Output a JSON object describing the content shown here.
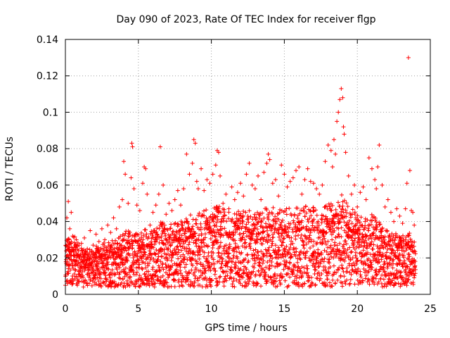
{
  "chart_data": {
    "type": "scatter",
    "title": "Day 090 of 2023, Rate Of TEC Index for receiver flgp",
    "xlabel": "GPS time / hours",
    "ylabel": "ROTI / TECUs",
    "xlim": [
      0,
      25
    ],
    "ylim": [
      0,
      0.14
    ],
    "xticks": [
      0,
      5,
      10,
      15,
      20,
      25
    ],
    "yticks": [
      0,
      0.02,
      0.04,
      0.06,
      0.08,
      0.1,
      0.12,
      0.14
    ],
    "xtick_labels": [
      "0",
      "5",
      "10",
      "15",
      "20",
      "25"
    ],
    "ytick_labels": [
      "0",
      "0.02",
      "0.04",
      "0.06",
      "0.08",
      "0.1",
      "0.12",
      "0.14"
    ],
    "grid": true,
    "marker": "+",
    "color": "#ff0000",
    "series": [
      {
        "name": "ROTI",
        "x": [
          0.1,
          0.2,
          0.25,
          0.3,
          0.35,
          0.4,
          0.5,
          0.6,
          0.75,
          0.9,
          1.1,
          1.3,
          1.5,
          1.7,
          1.9,
          2.1,
          2.3,
          2.5,
          2.7,
          2.9,
          3.1,
          3.3,
          3.5,
          3.7,
          3.9,
          4.0,
          4.1,
          4.3,
          4.5,
          4.55,
          4.6,
          4.7,
          4.9,
          5.1,
          5.3,
          5.4,
          5.5,
          5.6,
          5.8,
          6.0,
          6.2,
          6.4,
          6.5,
          6.7,
          6.9,
          7.1,
          7.3,
          7.5,
          7.7,
          7.9,
          8.1,
          8.3,
          8.5,
          8.7,
          8.8,
          8.9,
          9.0,
          9.1,
          9.3,
          9.5,
          9.7,
          9.9,
          10.1,
          10.3,
          10.4,
          10.5,
          10.6,
          10.8,
          11.0,
          11.2,
          11.4,
          11.6,
          11.8,
          12.0,
          12.2,
          12.4,
          12.6,
          12.8,
          13.0,
          13.2,
          13.4,
          13.6,
          13.8,
          13.9,
          14.0,
          14.2,
          14.4,
          14.6,
          14.8,
          15.0,
          15.2,
          15.4,
          15.6,
          15.8,
          16.0,
          16.2,
          16.4,
          16.6,
          16.8,
          17.0,
          17.2,
          17.4,
          17.6,
          17.8,
          18.0,
          18.2,
          18.3,
          18.4,
          18.5,
          18.6,
          18.7,
          18.8,
          18.9,
          19.0,
          19.05,
          19.1,
          19.2,
          19.4,
          19.6,
          19.8,
          20.0,
          20.2,
          20.4,
          20.6,
          20.8,
          21.0,
          21.2,
          21.3,
          21.4,
          21.5,
          21.7,
          21.9,
          22.1,
          22.3,
          22.5,
          22.7,
          22.9,
          23.1,
          23.3,
          23.4,
          23.5,
          23.6,
          23.7,
          23.8,
          23.9
        ],
        "y": [
          0.042,
          0.051,
          0.03,
          0.036,
          0.028,
          0.045,
          0.032,
          0.026,
          0.03,
          0.024,
          0.028,
          0.031,
          0.025,
          0.035,
          0.027,
          0.033,
          0.029,
          0.036,
          0.03,
          0.038,
          0.034,
          0.042,
          0.036,
          0.048,
          0.052,
          0.073,
          0.066,
          0.05,
          0.064,
          0.083,
          0.081,
          0.058,
          0.049,
          0.046,
          0.061,
          0.07,
          0.069,
          0.055,
          0.038,
          0.045,
          0.049,
          0.055,
          0.081,
          0.06,
          0.044,
          0.05,
          0.046,
          0.052,
          0.057,
          0.049,
          0.058,
          0.077,
          0.066,
          0.072,
          0.085,
          0.083,
          0.062,
          0.058,
          0.069,
          0.057,
          0.063,
          0.061,
          0.066,
          0.071,
          0.079,
          0.078,
          0.065,
          0.05,
          0.055,
          0.047,
          0.059,
          0.052,
          0.056,
          0.061,
          0.054,
          0.066,
          0.072,
          0.06,
          0.058,
          0.065,
          0.052,
          0.067,
          0.072,
          0.077,
          0.074,
          0.061,
          0.063,
          0.054,
          0.071,
          0.066,
          0.059,
          0.062,
          0.064,
          0.068,
          0.07,
          0.055,
          0.063,
          0.069,
          0.062,
          0.061,
          0.058,
          0.055,
          0.06,
          0.073,
          0.082,
          0.079,
          0.07,
          0.085,
          0.077,
          0.095,
          0.1,
          0.107,
          0.113,
          0.108,
          0.092,
          0.088,
          0.078,
          0.065,
          0.055,
          0.06,
          0.048,
          0.056,
          0.059,
          0.052,
          0.075,
          0.069,
          0.063,
          0.058,
          0.07,
          0.082,
          0.06,
          0.048,
          0.052,
          0.045,
          0.04,
          0.047,
          0.043,
          0.039,
          0.047,
          0.061,
          0.13,
          0.068,
          0.046,
          0.045,
          0.038
        ]
      }
    ],
    "band": {
      "description": "dense lower cloud",
      "x": [
        0.0,
        0.5,
        1.0,
        1.5,
        2.0,
        2.5,
        3.0,
        3.5,
        4.0,
        4.5,
        5.0,
        5.5,
        6.0,
        6.5,
        7.0,
        7.5,
        8.0,
        8.5,
        9.0,
        9.5,
        10.0,
        10.5,
        11.0,
        11.5,
        12.0,
        12.5,
        13.0,
        13.5,
        14.0,
        14.5,
        15.0,
        15.5,
        16.0,
        16.5,
        17.0,
        17.5,
        18.0,
        18.5,
        19.0,
        19.5,
        20.0,
        20.5,
        21.0,
        21.5,
        22.0,
        22.5,
        23.0,
        23.5,
        24.0
      ],
      "low": [
        0.005,
        0.005,
        0.004,
        0.004,
        0.004,
        0.004,
        0.004,
        0.004,
        0.004,
        0.004,
        0.004,
        0.004,
        0.004,
        0.004,
        0.004,
        0.004,
        0.004,
        0.004,
        0.004,
        0.004,
        0.004,
        0.004,
        0.004,
        0.004,
        0.004,
        0.004,
        0.004,
        0.004,
        0.004,
        0.004,
        0.004,
        0.004,
        0.004,
        0.004,
        0.004,
        0.004,
        0.004,
        0.004,
        0.004,
        0.004,
        0.004,
        0.004,
        0.004,
        0.004,
        0.004,
        0.004,
        0.004,
        0.005,
        0.005
      ],
      "high": [
        0.03,
        0.034,
        0.026,
        0.024,
        0.026,
        0.028,
        0.029,
        0.031,
        0.035,
        0.036,
        0.034,
        0.036,
        0.035,
        0.04,
        0.038,
        0.04,
        0.042,
        0.044,
        0.045,
        0.046,
        0.048,
        0.05,
        0.046,
        0.045,
        0.046,
        0.047,
        0.045,
        0.046,
        0.05,
        0.046,
        0.048,
        0.047,
        0.049,
        0.05,
        0.048,
        0.046,
        0.05,
        0.053,
        0.055,
        0.048,
        0.045,
        0.042,
        0.044,
        0.04,
        0.036,
        0.034,
        0.032,
        0.035,
        0.028
      ],
      "dense": [
        0.022,
        0.024,
        0.02,
        0.019,
        0.02,
        0.021,
        0.022,
        0.023,
        0.025,
        0.026,
        0.025,
        0.026,
        0.026,
        0.028,
        0.028,
        0.029,
        0.03,
        0.031,
        0.032,
        0.033,
        0.034,
        0.035,
        0.033,
        0.032,
        0.033,
        0.034,
        0.033,
        0.034,
        0.035,
        0.033,
        0.034,
        0.034,
        0.035,
        0.036,
        0.035,
        0.033,
        0.036,
        0.038,
        0.04,
        0.035,
        0.033,
        0.031,
        0.032,
        0.03,
        0.027,
        0.026,
        0.025,
        0.026,
        0.022
      ]
    }
  }
}
